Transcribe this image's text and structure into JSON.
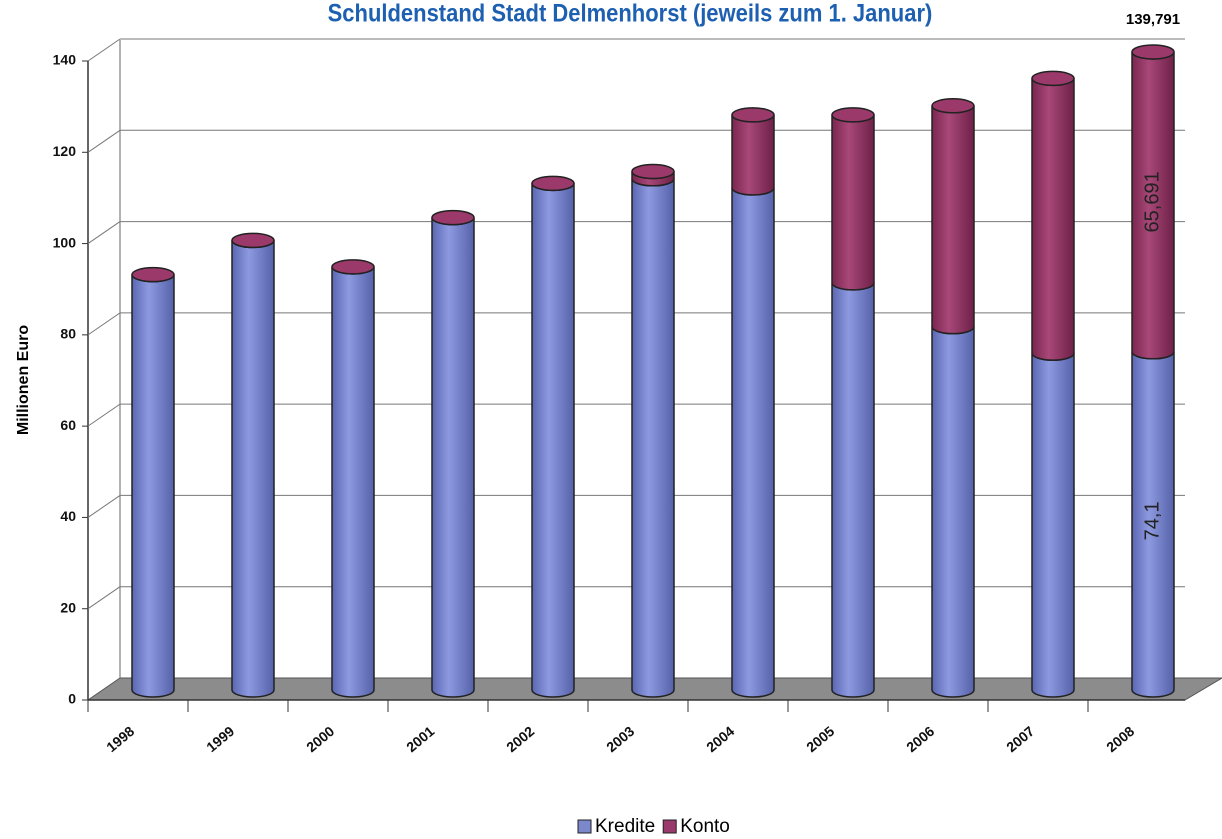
{
  "chart_data": {
    "type": "bar3d_stacked",
    "title": "Schuldenstand Stadt Delmenhorst (jeweils zum 1. Januar)",
    "y_label": "Millionen Euro",
    "categories": [
      "1998",
      "1999",
      "2000",
      "2001",
      "2002",
      "2003",
      "2004",
      "2005",
      "2006",
      "2007",
      "2008"
    ],
    "series": [
      {
        "name": "Kredite",
        "color": "#7b88cc",
        "values": [
          91,
          98.5,
          92.7,
          103.5,
          111,
          112,
          110,
          89.2,
          79.6,
          73.8,
          74.1
        ],
        "value_labels": [
          null,
          null,
          null,
          null,
          null,
          null,
          null,
          null,
          null,
          null,
          "74,1"
        ]
      },
      {
        "name": "Konto",
        "color": "#9b3a6a",
        "values": [
          0,
          0,
          0,
          0,
          0,
          1.6,
          16,
          36.8,
          48.4,
          60.2,
          65.691
        ],
        "value_labels": [
          null,
          null,
          null,
          null,
          null,
          null,
          null,
          null,
          null,
          null,
          "65,691"
        ]
      }
    ],
    "annotations": [
      {
        "text": "139,791",
        "category": "2008"
      }
    ],
    "ylim": [
      0,
      140
    ],
    "yticks": [
      0,
      20,
      40,
      60,
      80,
      100,
      120,
      140
    ],
    "grid": true,
    "legend": "bottom"
  }
}
